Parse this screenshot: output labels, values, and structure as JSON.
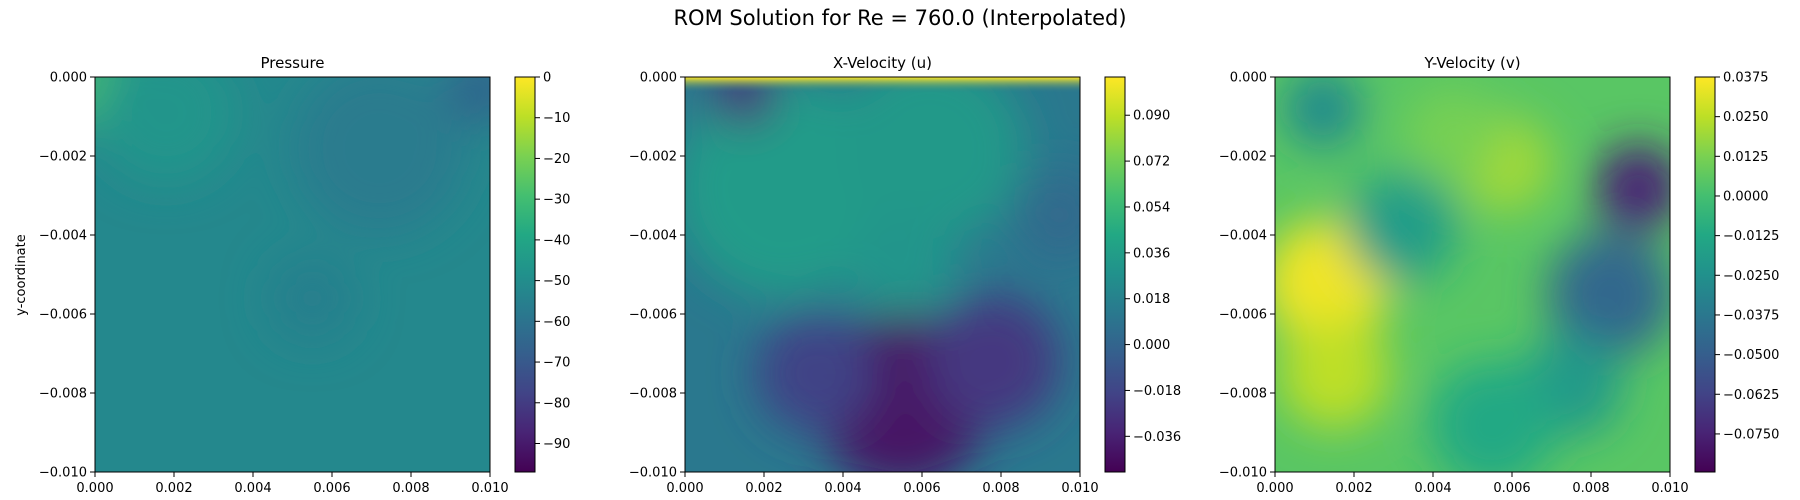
{
  "title": "ROM Solution for Re = 760.0 (Interpolated)",
  "ylabel": "y-coordinate",
  "colormap": "viridis",
  "chart_data": [
    {
      "type": "heatmap",
      "title": "Pressure",
      "xlim": [
        0.0,
        0.01
      ],
      "ylim": [
        -0.01,
        0.0
      ],
      "xticks": [
        "0.000",
        "0.002",
        "0.004",
        "0.006",
        "0.008",
        "0.010"
      ],
      "yticks": [
        "0.000",
        "−0.002",
        "−0.004",
        "−0.006",
        "−0.008",
        "−0.010"
      ],
      "colorbar": {
        "min": -97.0,
        "max": 0.0,
        "ticks": [
          0,
          -10,
          -20,
          -30,
          -40,
          -50,
          -60,
          -70,
          -80,
          -90
        ],
        "tick_labels": [
          "0",
          "−10",
          "−20",
          "−30",
          "−40",
          "−50",
          "−60",
          "−70",
          "−80",
          "−90"
        ]
      },
      "field": {
        "background": -52.0,
        "features": [
          {
            "x": 0.0003,
            "y": -0.0003,
            "value": -28.0,
            "radius": 0.0011
          },
          {
            "x": 0.0018,
            "y": -0.0009,
            "value": -47.0,
            "radius": 0.0018
          },
          {
            "x": 0.0072,
            "y": -0.0018,
            "value": -57.0,
            "radius": 0.0022
          },
          {
            "x": 0.0098,
            "y": -0.0003,
            "value": -66.0,
            "radius": 0.0009
          },
          {
            "x": 0.0055,
            "y": -0.0056,
            "value": -55.5,
            "radius": 0.0011
          }
        ]
      }
    },
    {
      "type": "heatmap",
      "title": "X-Velocity (u)",
      "xlim": [
        0.0,
        0.01
      ],
      "ylim": [
        -0.01,
        0.0
      ],
      "xticks": [
        "0.000",
        "0.002",
        "0.004",
        "0.006",
        "0.008",
        "0.010"
      ],
      "yticks": [
        "0.000",
        "−0.002",
        "−0.004",
        "−0.006",
        "−0.008",
        "−0.010"
      ],
      "colorbar": {
        "min": -0.05,
        "max": 0.105,
        "ticks": [
          0.09,
          0.072,
          0.054,
          0.036,
          0.018,
          0.0,
          -0.018,
          -0.036
        ],
        "tick_labels": [
          "0.090",
          "0.072",
          "0.054",
          "0.036",
          "0.018",
          "0.000",
          "−0.018",
          "−0.036"
        ]
      },
      "field": {
        "background": 0.012,
        "features": [
          {
            "x": 0.0025,
            "y": -0.0028,
            "value": 0.034,
            "radius": 0.0028
          },
          {
            "x": 0.0062,
            "y": -0.0018,
            "value": 0.033,
            "radius": 0.0024
          },
          {
            "x": 0.0055,
            "y": -0.0048,
            "value": 0.03,
            "radius": 0.0014
          },
          {
            "x": 0.0055,
            "y": -0.0082,
            "value": -0.042,
            "radius": 0.0022
          },
          {
            "x": 0.0078,
            "y": -0.0072,
            "value": -0.025,
            "radius": 0.0017
          },
          {
            "x": 0.0033,
            "y": -0.0075,
            "value": -0.02,
            "radius": 0.0015
          },
          {
            "x": 0.0015,
            "y": -0.0004,
            "value": -0.03,
            "radius": 0.0008
          },
          {
            "x": 0.0095,
            "y": -0.0035,
            "value": 0.004,
            "radius": 0.0012
          }
        ],
        "lid": {
          "value": 0.105,
          "thickness": 0.0004
        }
      }
    },
    {
      "type": "heatmap",
      "title": "Y-Velocity (v)",
      "xlim": [
        0.0,
        0.01
      ],
      "ylim": [
        -0.01,
        0.0
      ],
      "xticks": [
        "0.000",
        "0.002",
        "0.004",
        "0.006",
        "0.008",
        "0.010"
      ],
      "yticks": [
        "0.000",
        "−0.002",
        "−0.004",
        "−0.006",
        "−0.008",
        "−0.010"
      ],
      "colorbar": {
        "min": -0.087,
        "max": 0.0375,
        "ticks": [
          0.0375,
          0.025,
          0.0125,
          0.0,
          -0.0125,
          -0.025,
          -0.0375,
          -0.05,
          -0.0625,
          -0.075
        ],
        "tick_labels": [
          "0.0375",
          "0.0250",
          "0.0125",
          "0.0000",
          "−0.0125",
          "−0.0250",
          "−0.0375",
          "−0.0500",
          "−0.0625",
          "−0.0750"
        ]
      },
      "field": {
        "background": 0.005,
        "features": [
          {
            "x": 0.0013,
            "y": -0.0052,
            "value": 0.035,
            "radius": 0.0016
          },
          {
            "x": 0.0015,
            "y": -0.0075,
            "value": 0.025,
            "radius": 0.0014
          },
          {
            "x": 0.0092,
            "y": -0.0028,
            "value": -0.075,
            "radius": 0.0011
          },
          {
            "x": 0.0085,
            "y": -0.0055,
            "value": -0.045,
            "radius": 0.0016
          },
          {
            "x": 0.0075,
            "y": -0.0078,
            "value": -0.02,
            "radius": 0.0013
          },
          {
            "x": 0.0032,
            "y": -0.0038,
            "value": -0.018,
            "radius": 0.0014
          },
          {
            "x": 0.0055,
            "y": -0.0088,
            "value": -0.012,
            "radius": 0.0016
          },
          {
            "x": 0.0058,
            "y": -0.0022,
            "value": 0.02,
            "radius": 0.0012
          },
          {
            "x": 0.0012,
            "y": -0.0008,
            "value": -0.028,
            "radius": 0.001
          },
          {
            "x": 0.0045,
            "y": -0.0015,
            "value": 0.012,
            "radius": 0.0012
          }
        ]
      }
    }
  ]
}
